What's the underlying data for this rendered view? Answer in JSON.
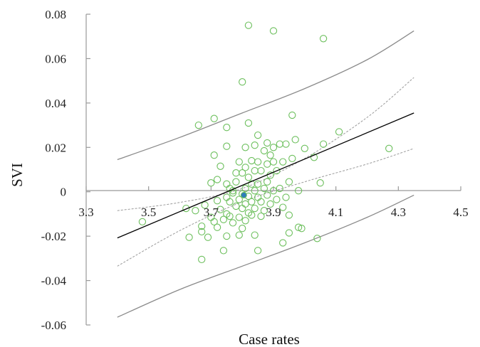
{
  "chart_data": {
    "type": "scatter",
    "xlabel": "Case rates",
    "ylabel": "SVI",
    "xlim": [
      3.3,
      4.5
    ],
    "ylim": [
      -0.06,
      0.08
    ],
    "x_ticks": [
      3.3,
      3.5,
      3.7,
      3.9,
      4.1,
      4.3,
      4.5
    ],
    "x_tick_labels": [
      "3.3",
      "3.5",
      "3.7",
      "3.9",
      "4.1",
      "4.3",
      "4.5"
    ],
    "y_ticks": [
      -0.06,
      -0.04,
      -0.02,
      0,
      0.02,
      0.04,
      0.06,
      0.08
    ],
    "y_tick_labels": [
      "-0.06",
      "-0.04",
      "-0.02",
      "0",
      "0.02",
      "0.04",
      "0.06",
      "0.08"
    ],
    "grid": false,
    "colors": {
      "points": "#6cbf5c",
      "centroid": "#2e7dba",
      "fit_line": "#000000",
      "confidence_band": "#9a9a9a",
      "prediction_band": "#8a8a8a",
      "axis": "#999999"
    },
    "points": [
      {
        "x": 3.48,
        "y": -0.0135
      },
      {
        "x": 3.62,
        "y": -0.0075
      },
      {
        "x": 3.63,
        "y": -0.0205
      },
      {
        "x": 3.65,
        "y": -0.0085
      },
      {
        "x": 3.66,
        "y": 0.03
      },
      {
        "x": 3.67,
        "y": -0.0155
      },
      {
        "x": 3.67,
        "y": -0.018
      },
      {
        "x": 3.67,
        "y": -0.0305
      },
      {
        "x": 3.68,
        "y": -0.006
      },
      {
        "x": 3.69,
        "y": -0.0205
      },
      {
        "x": 3.7,
        "y": 0.004
      },
      {
        "x": 3.7,
        "y": -0.0115
      },
      {
        "x": 3.71,
        "y": 0.033
      },
      {
        "x": 3.71,
        "y": 0.0165
      },
      {
        "x": 3.71,
        "y": -0.0135
      },
      {
        "x": 3.72,
        "y": 0.0055
      },
      {
        "x": 3.72,
        "y": -0.004
      },
      {
        "x": 3.72,
        "y": -0.016
      },
      {
        "x": 3.73,
        "y": 0.0115
      },
      {
        "x": 3.73,
        "y": -0.008
      },
      {
        "x": 3.74,
        "y": -0.0265
      },
      {
        "x": 3.74,
        "y": -0.0125
      },
      {
        "x": 3.75,
        "y": 0.029
      },
      {
        "x": 3.75,
        "y": 0.0205
      },
      {
        "x": 3.75,
        "y": 0.0035
      },
      {
        "x": 3.75,
        "y": -0.0025
      },
      {
        "x": 3.75,
        "y": -0.01
      },
      {
        "x": 3.75,
        "y": -0.02
      },
      {
        "x": 3.76,
        "y": 0.0015
      },
      {
        "x": 3.76,
        "y": -0.0045
      },
      {
        "x": 3.76,
        "y": -0.011
      },
      {
        "x": 3.77,
        "y": 0.0005
      },
      {
        "x": 3.77,
        "y": -0.0005
      },
      {
        "x": 3.77,
        "y": -0.014
      },
      {
        "x": 3.78,
        "y": 0.0085
      },
      {
        "x": 3.78,
        "y": 0.0045
      },
      {
        "x": 3.78,
        "y": -0.0065
      },
      {
        "x": 3.79,
        "y": 0.0135
      },
      {
        "x": 3.79,
        "y": -0.0035
      },
      {
        "x": 3.79,
        "y": -0.0115
      },
      {
        "x": 3.79,
        "y": -0.0195
      },
      {
        "x": 3.8,
        "y": 0.0495
      },
      {
        "x": 3.8,
        "y": 0.0085
      },
      {
        "x": 3.8,
        "y": -0.001
      },
      {
        "x": 3.8,
        "y": -0.0075
      },
      {
        "x": 3.8,
        "y": -0.0165
      },
      {
        "x": 3.81,
        "y": 0.02
      },
      {
        "x": 3.81,
        "y": 0.011
      },
      {
        "x": 3.81,
        "y": 0.0015
      },
      {
        "x": 3.81,
        "y": -0.0055
      },
      {
        "x": 3.81,
        "y": -0.013
      },
      {
        "x": 3.82,
        "y": 0.075
      },
      {
        "x": 3.82,
        "y": 0.031
      },
      {
        "x": 3.82,
        "y": 0.0065
      },
      {
        "x": 3.82,
        "y": -0.002
      },
      {
        "x": 3.82,
        "y": -0.0095
      },
      {
        "x": 3.83,
        "y": 0.014
      },
      {
        "x": 3.83,
        "y": 0.0035
      },
      {
        "x": 3.83,
        "y": -0.0045
      },
      {
        "x": 3.83,
        "y": -0.0105
      },
      {
        "x": 3.84,
        "y": 0.021
      },
      {
        "x": 3.84,
        "y": 0.0095
      },
      {
        "x": 3.84,
        "y": 0.0005
      },
      {
        "x": 3.84,
        "y": -0.0075
      },
      {
        "x": 3.84,
        "y": -0.0195
      },
      {
        "x": 3.85,
        "y": 0.0255
      },
      {
        "x": 3.85,
        "y": 0.0135
      },
      {
        "x": 3.85,
        "y": 0.0035
      },
      {
        "x": 3.85,
        "y": -0.0025
      },
      {
        "x": 3.85,
        "y": -0.0265
      },
      {
        "x": 3.86,
        "y": 0.0095
      },
      {
        "x": 3.86,
        "y": -0.0045
      },
      {
        "x": 3.86,
        "y": -0.011
      },
      {
        "x": 3.87,
        "y": 0.0185
      },
      {
        "x": 3.87,
        "y": 0.0015
      },
      {
        "x": 3.87,
        "y": -0.0085
      },
      {
        "x": 3.88,
        "y": 0.022
      },
      {
        "x": 3.88,
        "y": 0.0125
      },
      {
        "x": 3.88,
        "y": 0.0045
      },
      {
        "x": 3.88,
        "y": -0.0015
      },
      {
        "x": 3.89,
        "y": 0.0165
      },
      {
        "x": 3.89,
        "y": 0.0075
      },
      {
        "x": 3.89,
        "y": -0.0055
      },
      {
        "x": 3.9,
        "y": 0.0725
      },
      {
        "x": 3.9,
        "y": 0.02
      },
      {
        "x": 3.9,
        "y": 0.0135
      },
      {
        "x": 3.9,
        "y": 0.0005
      },
      {
        "x": 3.91,
        "y": 0.0095
      },
      {
        "x": 3.91,
        "y": -0.0035
      },
      {
        "x": 3.92,
        "y": 0.0215
      },
      {
        "x": 3.92,
        "y": 0.0015
      },
      {
        "x": 3.93,
        "y": 0.0135
      },
      {
        "x": 3.93,
        "y": -0.007
      },
      {
        "x": 3.93,
        "y": -0.023
      },
      {
        "x": 3.94,
        "y": 0.0215
      },
      {
        "x": 3.94,
        "y": -0.0025
      },
      {
        "x": 3.95,
        "y": 0.0045
      },
      {
        "x": 3.95,
        "y": -0.0105
      },
      {
        "x": 3.95,
        "y": -0.0185
      },
      {
        "x": 3.96,
        "y": 0.0345
      },
      {
        "x": 3.96,
        "y": 0.015
      },
      {
        "x": 3.97,
        "y": 0.0235
      },
      {
        "x": 3.98,
        "y": 0.0005
      },
      {
        "x": 3.98,
        "y": -0.016
      },
      {
        "x": 3.99,
        "y": -0.0165
      },
      {
        "x": 4.0,
        "y": 0.0195
      },
      {
        "x": 4.03,
        "y": 0.0155
      },
      {
        "x": 4.04,
        "y": -0.021
      },
      {
        "x": 4.05,
        "y": 0.004
      },
      {
        "x": 4.06,
        "y": 0.069
      },
      {
        "x": 4.06,
        "y": 0.0215
      },
      {
        "x": 4.11,
        "y": 0.027
      },
      {
        "x": 4.27,
        "y": 0.0195
      }
    ],
    "centroid": {
      "x": 3.805,
      "y": -0.0015
    },
    "fit_line": [
      {
        "x": 3.4,
        "y": -0.0208
      },
      {
        "x": 4.35,
        "y": 0.0355
      }
    ],
    "confidence_upper": [
      {
        "x": 3.4,
        "y": -0.0085
      },
      {
        "x": 3.6,
        "y": -0.0048
      },
      {
        "x": 3.8,
        "y": 0.0015
      },
      {
        "x": 4.0,
        "y": 0.015
      },
      {
        "x": 4.2,
        "y": 0.0335
      },
      {
        "x": 4.35,
        "y": 0.0515
      }
    ],
    "confidence_lower": [
      {
        "x": 3.4,
        "y": -0.0335
      },
      {
        "x": 3.6,
        "y": -0.0175
      },
      {
        "x": 3.8,
        "y": -0.0045
      },
      {
        "x": 4.0,
        "y": 0.0045
      },
      {
        "x": 4.2,
        "y": 0.0125
      },
      {
        "x": 4.35,
        "y": 0.0195
      }
    ],
    "prediction_upper": [
      {
        "x": 3.4,
        "y": 0.0145
      },
      {
        "x": 3.6,
        "y": 0.0245
      },
      {
        "x": 3.8,
        "y": 0.0355
      },
      {
        "x": 4.0,
        "y": 0.0465
      },
      {
        "x": 4.2,
        "y": 0.0595
      },
      {
        "x": 4.35,
        "y": 0.0725
      }
    ],
    "prediction_lower": [
      {
        "x": 3.4,
        "y": -0.0565
      },
      {
        "x": 3.6,
        "y": -0.044
      },
      {
        "x": 3.8,
        "y": -0.0335
      },
      {
        "x": 4.0,
        "y": -0.023
      },
      {
        "x": 4.2,
        "y": -0.0115
      },
      {
        "x": 4.35,
        "y": -0.0015
      }
    ]
  }
}
